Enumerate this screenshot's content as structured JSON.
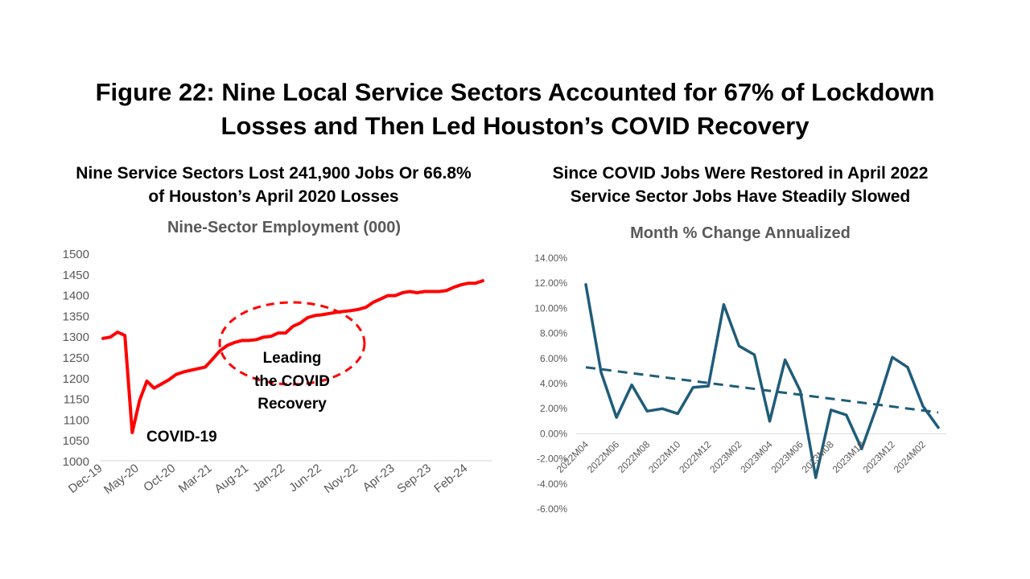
{
  "title_line1": "Figure 22: Nine Local Service Sectors Accounted for 67% of Lockdown",
  "title_line2": "Losses and Then Led Houston’s COVID Recovery",
  "left_panel": {
    "heading_line1": "Nine Service Sectors Lost 241,900 Jobs Or 66.8%",
    "heading_line2": "of Houston’s April 2020 Losses"
  },
  "right_panel": {
    "heading_line1": "Since COVID Jobs Were Restored in April 2022",
    "heading_line2": "Service Sector Jobs Have Steadily Slowed"
  },
  "colors": {
    "left_line": "#ff0000",
    "right_line": "#1f5c7a",
    "axis": "#d9d9d9",
    "tick_text": "#595959"
  },
  "chart_data": [
    {
      "type": "line",
      "title": "Nine-Sector Employment (000)",
      "xlabel": "",
      "ylabel": "",
      "ylim": [
        1000,
        1500
      ],
      "yticks": [
        "1000",
        "1050",
        "1100",
        "1150",
        "1200",
        "1250",
        "1300",
        "1350",
        "1400",
        "1450",
        "1500"
      ],
      "xtick_labels": [
        "Dec-19",
        "May-20",
        "Oct-20",
        "Mar-21",
        "Aug-21",
        "Jan-22",
        "Jun-22",
        "Nov-22",
        "Apr-23",
        "Sep-23",
        "Feb-24"
      ],
      "xtick_index": [
        0,
        5,
        10,
        15,
        20,
        25,
        30,
        35,
        40,
        45,
        50
      ],
      "grid": false,
      "series": [
        {
          "values": [
            1295,
            1298,
            1310,
            1302,
            1068,
            1145,
            1192,
            1175,
            1185,
            1195,
            1208,
            1214,
            1218,
            1222,
            1226,
            1245,
            1265,
            1278,
            1285,
            1290,
            1290,
            1292,
            1298,
            1300,
            1308,
            1308,
            1324,
            1332,
            1345,
            1350,
            1352,
            1355,
            1358,
            1360,
            1362,
            1365,
            1370,
            1382,
            1390,
            1398,
            1398,
            1405,
            1408,
            1405,
            1408,
            1408,
            1408,
            1410,
            1418,
            1424,
            1428,
            1428,
            1434
          ]
        }
      ],
      "annotations": [
        {
          "text": "COVID-19"
        },
        {
          "text": "Leading"
        },
        {
          "text": "the COVID"
        },
        {
          "text": "Recovery"
        }
      ]
    },
    {
      "type": "line",
      "title": "Month % Change Annualized",
      "xlabel": "",
      "ylabel": "",
      "ylim": [
        -6,
        14
      ],
      "yticks": [
        "-6.00%",
        "-4.00%",
        "-2.00%",
        "0.00%",
        "2.00%",
        "4.00%",
        "6.00%",
        "8.00%",
        "10.00%",
        "12.00%",
        "14.00%"
      ],
      "categories": [
        "2022M04",
        "2022M05",
        "2022M06",
        "2022M07",
        "2022M08",
        "2022M09",
        "2022M10",
        "2022M11",
        "2022M12",
        "2023M01",
        "2023M02",
        "2023M03",
        "2023M04",
        "2023M05",
        "2023M06",
        "2023M07",
        "2023M08",
        "2023M09",
        "2023M10",
        "2023M11",
        "2023M12",
        "2024M01",
        "2024M02",
        "2024M03"
      ],
      "xtick_labels": [
        "2022M04",
        "2022M06",
        "2022M08",
        "2022M10",
        "2022M12",
        "2023M02",
        "2023M04",
        "2023M06",
        "2023M08",
        "2023M10",
        "2023M12",
        "2024M02"
      ],
      "xtick_index": [
        0,
        2,
        4,
        6,
        8,
        10,
        12,
        14,
        16,
        18,
        20,
        22
      ],
      "grid": false,
      "series": [
        {
          "values": [
            11.9,
            4.9,
            1.3,
            3.9,
            1.8,
            2.0,
            1.6,
            3.7,
            3.8,
            10.3,
            7.0,
            6.3,
            1.0,
            5.9,
            3.4,
            -3.5,
            1.9,
            1.5,
            -1.2,
            2.2,
            6.1,
            5.3,
            2.2,
            0.5
          ]
        }
      ],
      "trendline": {
        "start": 5.3,
        "end": 1.7
      }
    }
  ]
}
